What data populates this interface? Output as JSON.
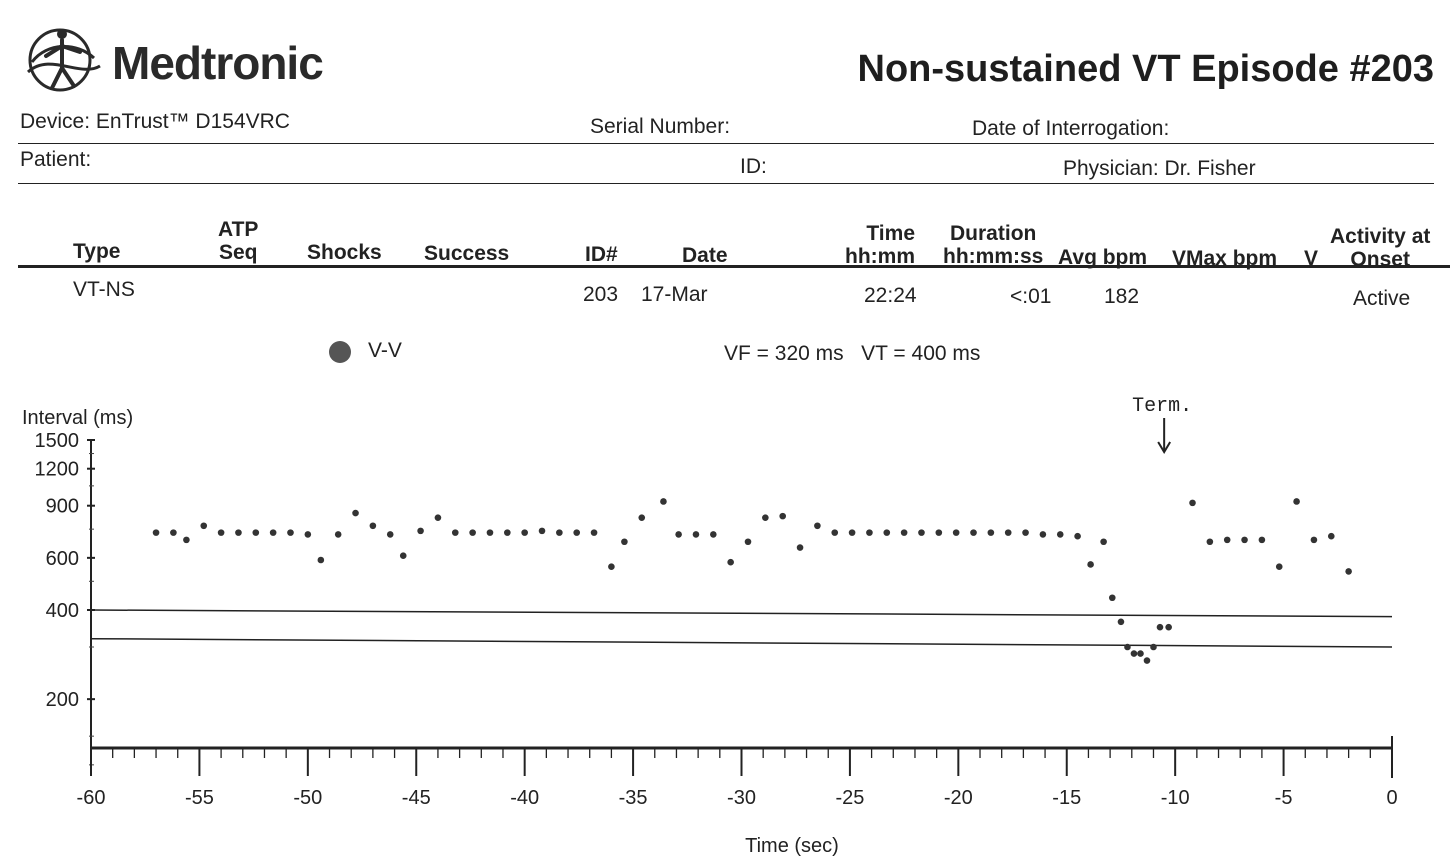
{
  "header": {
    "brand": "Medtronic",
    "logo_icon": "medtronic-figure-logo-icon",
    "title": "Non-sustained VT Episode #203"
  },
  "info": {
    "device_label": "Device: EnTrust™ D154VRC",
    "serial_label": "Serial Number:",
    "interrogation_label": "Date of Interrogation:",
    "patient_label": "Patient:",
    "id_label": "ID:",
    "physician_label": "Physician: Dr. Fisher"
  },
  "table": {
    "headers": {
      "type": "Type",
      "atp": "ATP\nSeq",
      "shocks": "Shocks",
      "success": "Success",
      "id": "ID#",
      "date": "Date",
      "time": "Time\nhh:mm",
      "duration": "Duration\nhh:mm:ss",
      "avg": "Avg bpm",
      "vmax": "VMax bpm",
      "v": "V",
      "activity": "Activity at\nOnset"
    },
    "row": {
      "type": "VT-NS",
      "atp": "",
      "shocks": "",
      "success": "",
      "id": "203",
      "date": "17-Mar",
      "time": "22:24",
      "duration": "<:01",
      "avg": "182",
      "vmax": "",
      "v": "",
      "activity": "Active"
    }
  },
  "legend": {
    "label": "V-V",
    "marker_color": "#555555",
    "zones": "VF = 320 ms   VT = 400 ms"
  },
  "chart_data": {
    "type": "scatter",
    "ylabel": "Interval (ms)",
    "xlabel": "Time (sec)",
    "xlim": [
      -60,
      0
    ],
    "ylim": [
      100,
      1500
    ],
    "y_scale": "log",
    "y_ticks": [
      1500,
      1200,
      900,
      600,
      400,
      200
    ],
    "x_ticks": [
      -60,
      -55,
      -50,
      -45,
      -40,
      -35,
      -30,
      -25,
      -20,
      -15,
      -10,
      -5,
      0
    ],
    "thresholds": [
      {
        "name": "VT",
        "y_start": 400,
        "y_end": 380
      },
      {
        "name": "VF",
        "y_start": 320,
        "y_end": 300
      }
    ],
    "annotation": {
      "text": "Term.",
      "x": -10.6,
      "y": 1650
    },
    "series": [
      {
        "name": "V-V",
        "color": "#333333",
        "points": [
          [
            -57.0,
            730
          ],
          [
            -56.2,
            730
          ],
          [
            -55.6,
            690
          ],
          [
            -54.8,
            770
          ],
          [
            -54.0,
            730
          ],
          [
            -53.2,
            730
          ],
          [
            -52.4,
            730
          ],
          [
            -51.6,
            730
          ],
          [
            -50.8,
            730
          ],
          [
            -50.0,
            720
          ],
          [
            -49.4,
            590
          ],
          [
            -48.6,
            720
          ],
          [
            -47.8,
            850
          ],
          [
            -47.0,
            770
          ],
          [
            -46.2,
            720
          ],
          [
            -45.6,
            610
          ],
          [
            -44.8,
            740
          ],
          [
            -44.0,
            820
          ],
          [
            -43.2,
            730
          ],
          [
            -42.4,
            730
          ],
          [
            -41.6,
            730
          ],
          [
            -40.8,
            730
          ],
          [
            -40.0,
            730
          ],
          [
            -39.2,
            740
          ],
          [
            -38.4,
            730
          ],
          [
            -37.6,
            730
          ],
          [
            -36.8,
            730
          ],
          [
            -36.0,
            560
          ],
          [
            -35.4,
            680
          ],
          [
            -34.6,
            820
          ],
          [
            -33.6,
            930
          ],
          [
            -32.9,
            720
          ],
          [
            -32.1,
            720
          ],
          [
            -31.3,
            720
          ],
          [
            -30.5,
            580
          ],
          [
            -29.7,
            680
          ],
          [
            -28.9,
            820
          ],
          [
            -28.1,
            830
          ],
          [
            -27.3,
            650
          ],
          [
            -26.5,
            770
          ],
          [
            -25.7,
            730
          ],
          [
            -24.9,
            730
          ],
          [
            -24.1,
            730
          ],
          [
            -23.3,
            730
          ],
          [
            -22.5,
            730
          ],
          [
            -21.7,
            730
          ],
          [
            -20.9,
            730
          ],
          [
            -20.1,
            730
          ],
          [
            -19.3,
            730
          ],
          [
            -18.5,
            730
          ],
          [
            -17.7,
            730
          ],
          [
            -16.9,
            730
          ],
          [
            -16.1,
            720
          ],
          [
            -15.3,
            720
          ],
          [
            -14.5,
            710
          ],
          [
            -13.9,
            570
          ],
          [
            -13.3,
            680
          ],
          [
            -12.9,
            440
          ],
          [
            -12.5,
            365
          ],
          [
            -12.2,
            300
          ],
          [
            -11.9,
            285
          ],
          [
            -11.6,
            285
          ],
          [
            -11.3,
            270
          ],
          [
            -11.0,
            300
          ],
          [
            -10.7,
            350
          ],
          [
            -10.3,
            350
          ],
          [
            -9.2,
            920
          ],
          [
            -8.4,
            680
          ],
          [
            -7.6,
            690
          ],
          [
            -6.8,
            690
          ],
          [
            -6.0,
            690
          ],
          [
            -5.2,
            560
          ],
          [
            -4.4,
            930
          ],
          [
            -3.6,
            690
          ],
          [
            -2.8,
            710
          ],
          [
            -2.0,
            540
          ]
        ]
      }
    ]
  }
}
